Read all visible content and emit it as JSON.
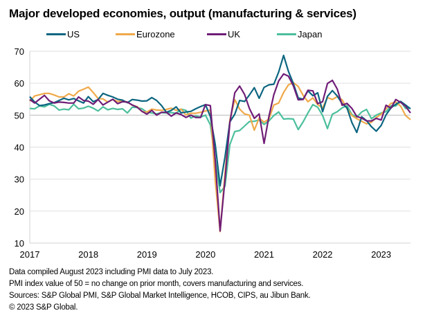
{
  "title": "Major developed economies, output (manufacturing & services)",
  "notes": [
    "Data compiled August 2023 including PMI data to July 2023.",
    "PMI index value of 50 = no change on prior month, covers manufacturing and services.",
    "Sources: S&P Global PMI, S&P Global Market Intelligence, HCOB, CIPS, au Jibun Bank.",
    "© 2023 S&P Global."
  ],
  "chart_data": {
    "type": "line",
    "title": "Major developed economies, output (manufacturing & services)",
    "xlabel": "",
    "ylabel": "",
    "x_start": "2017-01",
    "x_end": "2023-07",
    "frequency": "monthly",
    "xticks": [
      "2017",
      "2018",
      "2019",
      "2020",
      "2021",
      "2022",
      "2023"
    ],
    "yticks": [
      10,
      20,
      30,
      40,
      50,
      60,
      70
    ],
    "ylim": [
      10,
      70
    ],
    "grid": "horizontal",
    "legend_position": "top",
    "series": [
      {
        "name": "US",
        "color": "#0b6580",
        "values": [
          55.8,
          54.1,
          53.0,
          53.2,
          53.6,
          53.9,
          54.6,
          55.3,
          54.8,
          55.2,
          54.5,
          53.8,
          55.8,
          54.2,
          54.9,
          56.8,
          56.2,
          55.7,
          55.0,
          54.7,
          53.9,
          54.9,
          54.7,
          54.4,
          54.5,
          55.5,
          54.6,
          53.0,
          50.9,
          51.5,
          52.6,
          50.7,
          51.0,
          51.2,
          52.0,
          52.7,
          53.3,
          49.6,
          40.9,
          27.9,
          37.0,
          47.9,
          50.3,
          54.6,
          54.3,
          56.3,
          58.6,
          55.3,
          58.7,
          59.5,
          59.7,
          63.5,
          68.7,
          63.7,
          59.9,
          55.4,
          55.0,
          57.6,
          56.1,
          57.0,
          51.1,
          55.9,
          57.7,
          56.0,
          53.6,
          52.3,
          47.7,
          44.6,
          49.5,
          48.3,
          46.4,
          45.0,
          46.8,
          50.1,
          52.3,
          53.4,
          54.3,
          53.2,
          52.0
        ]
      },
      {
        "name": "Eurozone",
        "color": "#f0a94a",
        "values": [
          54.4,
          56.0,
          56.4,
          56.8,
          56.8,
          56.3,
          55.7,
          55.7,
          56.7,
          56.0,
          57.5,
          58.1,
          58.8,
          57.1,
          55.2,
          55.1,
          54.1,
          54.9,
          54.3,
          54.5,
          54.1,
          53.1,
          52.7,
          51.1,
          51.0,
          51.9,
          51.6,
          51.5,
          51.8,
          52.2,
          51.5,
          51.9,
          50.1,
          50.6,
          50.6,
          50.9,
          51.3,
          51.6,
          29.7,
          13.6,
          31.9,
          48.5,
          54.9,
          51.9,
          50.4,
          50.0,
          45.3,
          49.1,
          47.8,
          48.8,
          53.2,
          53.8,
          57.1,
          59.5,
          60.2,
          59.0,
          56.2,
          54.2,
          55.4,
          53.3,
          52.3,
          55.5,
          54.9,
          55.8,
          54.8,
          52.0,
          49.9,
          48.9,
          48.1,
          47.3,
          47.8,
          49.3,
          50.3,
          52.0,
          53.7,
          54.1,
          52.8,
          49.9,
          48.6
        ]
      },
      {
        "name": "UK",
        "color": "#6f1d77",
        "values": [
          54.9,
          53.8,
          55.0,
          56.2,
          54.5,
          53.8,
          54.1,
          54.0,
          53.8,
          53.8,
          55.7,
          54.6,
          54.4,
          53.4,
          54.9,
          53.2,
          54.1,
          55.0,
          53.6,
          54.2,
          54.1,
          53.2,
          52.5,
          51.2,
          50.3,
          51.5,
          50.0,
          50.9,
          50.9,
          49.7,
          50.7,
          50.2,
          49.3,
          50.0,
          49.3,
          49.3,
          53.3,
          53.0,
          36.0,
          13.8,
          30.0,
          47.7,
          57.0,
          59.1,
          56.5,
          52.1,
          49.0,
          50.4,
          41.2,
          49.6,
          56.4,
          60.7,
          62.9,
          62.2,
          59.2,
          54.8,
          54.9,
          57.8,
          57.6,
          53.6,
          54.2,
          59.9,
          60.9,
          58.2,
          53.1,
          53.7,
          52.1,
          49.6,
          49.1,
          48.2,
          48.2,
          49.0,
          48.5,
          53.1,
          52.2,
          54.9,
          54.0,
          52.8,
          50.7
        ]
      },
      {
        "name": "Japan",
        "color": "#4bbf9c",
        "values": [
          52.1,
          52.0,
          52.9,
          52.6,
          53.4,
          52.9,
          51.6,
          51.9,
          51.7,
          53.4,
          52.0,
          52.2,
          52.8,
          52.2,
          51.3,
          52.6,
          51.7,
          52.1,
          51.8,
          52.0,
          50.7,
          52.5,
          52.4,
          52.0,
          50.9,
          50.7,
          50.4,
          50.8,
          50.7,
          50.8,
          50.6,
          51.9,
          51.5,
          49.1,
          49.8,
          49.4,
          50.0,
          47.0,
          36.2,
          25.8,
          27.8,
          40.8,
          44.9,
          45.2,
          46.6,
          48.0,
          48.1,
          48.5,
          47.1,
          48.2,
          49.9,
          51.0,
          48.8,
          48.9,
          48.8,
          45.5,
          47.9,
          50.7,
          53.3,
          52.5,
          49.9,
          45.8,
          50.3,
          51.1,
          52.3,
          53.0,
          50.2,
          49.4,
          51.0,
          51.8,
          48.9,
          50.0,
          50.7,
          51.1,
          52.9,
          52.9,
          54.3,
          52.1,
          52.2
        ]
      }
    ]
  }
}
